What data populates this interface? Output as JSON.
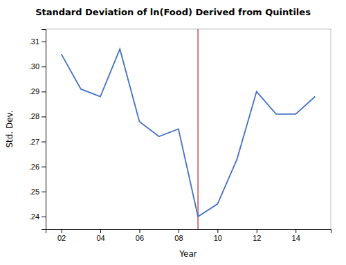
{
  "chart_data": {
    "type": "line",
    "title": "Standard Deviation of ln(Food) Derived from Quintiles",
    "xlabel": "Year",
    "ylabel": "Std. Dev.",
    "x": [
      2002,
      2003,
      2004,
      2005,
      2006,
      2007,
      2008,
      2009,
      2010,
      2011,
      2012,
      2013,
      2014,
      2015
    ],
    "values": [
      0.305,
      0.291,
      0.288,
      0.307,
      0.278,
      0.272,
      0.275,
      0.24,
      0.245,
      0.263,
      0.29,
      0.281,
      0.281,
      0.288
    ],
    "color": "#4472C4",
    "vline": {
      "x": 2009,
      "color": "#C0504D"
    },
    "xlim": [
      2001.2,
      2015.8
    ],
    "ylim": [
      0.235,
      0.315
    ],
    "xticks": [
      {
        "value": 2002,
        "label": "02"
      },
      {
        "value": 2004,
        "label": "04"
      },
      {
        "value": 2006,
        "label": "06"
      },
      {
        "value": 2008,
        "label": "08"
      },
      {
        "value": 2010,
        "label": "10"
      },
      {
        "value": 2012,
        "label": "12"
      },
      {
        "value": 2014,
        "label": "14"
      }
    ],
    "yticks": [
      {
        "value": 0.24,
        "label": ".24"
      },
      {
        "value": 0.25,
        "label": ".25"
      },
      {
        "value": 0.26,
        "label": ".26"
      },
      {
        "value": 0.27,
        "label": ".27"
      },
      {
        "value": 0.28,
        "label": ".28"
      },
      {
        "value": 0.29,
        "label": ".29"
      },
      {
        "value": 0.3,
        "label": ".30"
      },
      {
        "value": 0.31,
        "label": ".31"
      }
    ],
    "grid": false
  }
}
